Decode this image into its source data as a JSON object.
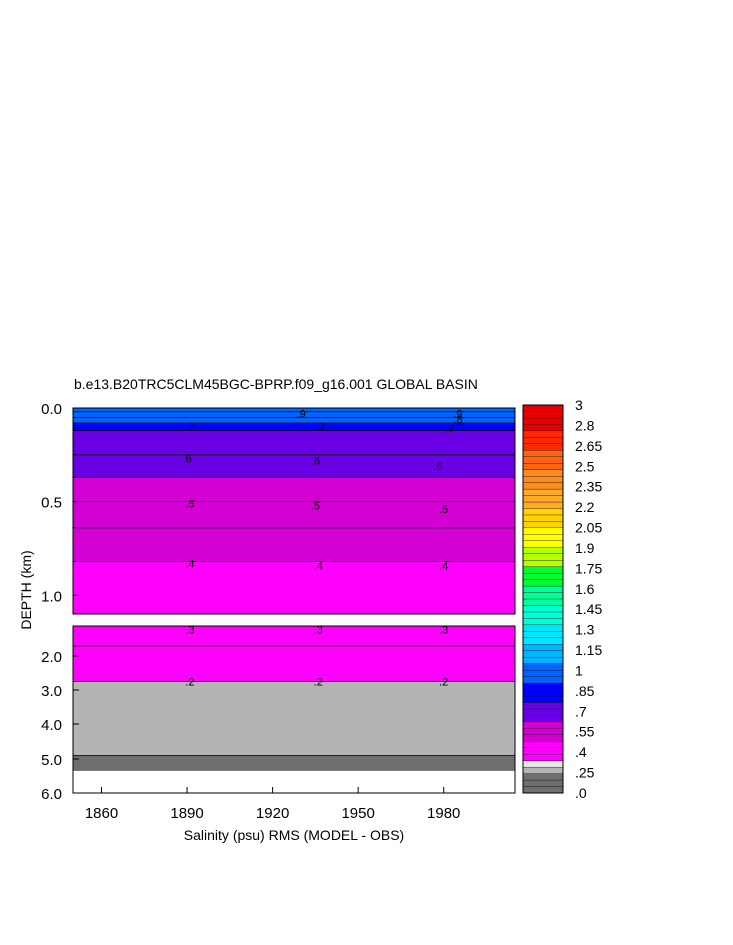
{
  "chart_data": {
    "type": "heatmap",
    "title": "b.e13.B20TRC5CLM45BGC-BPRP.f09_g16.001 GLOBAL BASIN",
    "xlabel": "Salinity (psu) RMS (MODEL - OBS)",
    "ylabel": "DEPTH (km)",
    "xlim": [
      1850,
      2005
    ],
    "x_ticks": [
      "1860",
      "1890",
      "1920",
      "1950",
      "1980"
    ],
    "upper_panel": {
      "ylim": [
        0.0,
        1.1
      ],
      "y_ticks": [
        "0.0",
        "0.5",
        "1.0"
      ],
      "depth_bands": [
        {
          "depth_top": 0.0,
          "depth_bottom": 0.02,
          "value": 0.95
        },
        {
          "depth_top": 0.02,
          "depth_bottom": 0.05,
          "value": 0.9
        },
        {
          "depth_top": 0.05,
          "depth_bottom": 0.08,
          "value": 0.85
        },
        {
          "depth_top": 0.08,
          "depth_bottom": 0.12,
          "value": 0.75
        },
        {
          "depth_top": 0.12,
          "depth_bottom": 0.25,
          "value": 0.65
        },
        {
          "depth_top": 0.25,
          "depth_bottom": 0.37,
          "value": 0.57
        },
        {
          "depth_top": 0.37,
          "depth_bottom": 0.5,
          "value": 0.52
        },
        {
          "depth_top": 0.5,
          "depth_bottom": 0.64,
          "value": 0.47
        },
        {
          "depth_top": 0.64,
          "depth_bottom": 0.82,
          "value": 0.42
        },
        {
          "depth_top": 0.82,
          "depth_bottom": 1.1,
          "value": 0.37
        }
      ],
      "contour_labels": [
        {
          "text": ".9",
          "x": 1930,
          "depth": 0.03
        },
        {
          "text": ".9",
          "x": 1985,
          "depth": 0.03
        },
        {
          "text": ".8",
          "x": 1985,
          "depth": 0.06
        },
        {
          "text": ".7",
          "x": 1891,
          "depth": 0.1
        },
        {
          "text": ".7",
          "x": 1937,
          "depth": 0.1
        },
        {
          "text": ".7",
          "x": 1982,
          "depth": 0.11
        },
        {
          "text": ".6",
          "x": 1890,
          "depth": 0.27
        },
        {
          "text": ".6",
          "x": 1935,
          "depth": 0.28
        },
        {
          "text": ".6",
          "x": 1978,
          "depth": 0.31
        },
        {
          "text": ".5",
          "x": 1891,
          "depth": 0.51
        },
        {
          "text": ".5",
          "x": 1935,
          "depth": 0.52
        },
        {
          "text": ".5",
          "x": 1980,
          "depth": 0.54
        },
        {
          "text": ".4",
          "x": 1891,
          "depth": 0.83
        },
        {
          "text": ".4",
          "x": 1936,
          "depth": 0.84
        },
        {
          "text": ".4",
          "x": 1980,
          "depth": 0.84
        }
      ]
    },
    "lower_panel": {
      "ylim": [
        1.1,
        6.0
      ],
      "y_ticks": [
        "2.0",
        "3.0",
        "4.0",
        "5.0",
        "6.0"
      ],
      "depth_bands": [
        {
          "depth_top": 1.1,
          "depth_bottom": 1.7,
          "value": 0.32
        },
        {
          "depth_top": 1.7,
          "depth_bottom": 2.75,
          "value": 0.27
        },
        {
          "depth_top": 2.75,
          "depth_bottom": 4.9,
          "value": 0.15
        },
        {
          "depth_top": 4.9,
          "depth_bottom": 5.35,
          "value": 0.05
        }
      ],
      "contour_labels": [
        {
          "text": ".3",
          "x": 1891,
          "depth": 1.2
        },
        {
          "text": ".3",
          "x": 1936,
          "depth": 1.2
        },
        {
          "text": ".3",
          "x": 1980,
          "depth": 1.2
        },
        {
          "text": ".2",
          "x": 1891,
          "depth": 2.75
        },
        {
          "text": ".2",
          "x": 1936,
          "depth": 2.75
        },
        {
          "text": ".2",
          "x": 1980,
          "depth": 2.75
        }
      ]
    },
    "colorbar": {
      "labels": [
        "3",
        "2.8",
        "2.65",
        "2.5",
        "2.35",
        "2.2",
        "2.05",
        "1.9",
        "1.75",
        "1.6",
        "1.45",
        "1.3",
        "1.15",
        "1",
        ".85",
        ".7",
        ".55",
        ".4",
        ".25",
        ".0"
      ],
      "color_stops": [
        {
          "value": 0.0,
          "color": "#6e6e6e"
        },
        {
          "value": 0.12,
          "color": "#b4b4b4"
        },
        {
          "value": 0.2,
          "color": "#e6e6e6"
        },
        {
          "value": 0.25,
          "color": "#ff00ff"
        },
        {
          "value": 0.4,
          "color": "#d200d2"
        },
        {
          "value": 0.55,
          "color": "#6a00e6"
        },
        {
          "value": 0.7,
          "color": "#0000ff"
        },
        {
          "value": 0.85,
          "color": "#0064ff"
        },
        {
          "value": 1.0,
          "color": "#00b4ff"
        },
        {
          "value": 1.15,
          "color": "#00e6ff"
        },
        {
          "value": 1.3,
          "color": "#00ffd2"
        },
        {
          "value": 1.45,
          "color": "#00ff96"
        },
        {
          "value": 1.6,
          "color": "#00ff32"
        },
        {
          "value": 1.75,
          "color": "#b4ff00"
        },
        {
          "value": 1.9,
          "color": "#ffff00"
        },
        {
          "value": 2.05,
          "color": "#ffd200"
        },
        {
          "value": 2.2,
          "color": "#ffaa28"
        },
        {
          "value": 2.35,
          "color": "#ff8c1e"
        },
        {
          "value": 2.5,
          "color": "#ff6414"
        },
        {
          "value": 2.65,
          "color": "#ff2800"
        },
        {
          "value": 2.8,
          "color": "#e60000"
        },
        {
          "value": 3.0,
          "color": "#b40000"
        }
      ]
    }
  }
}
